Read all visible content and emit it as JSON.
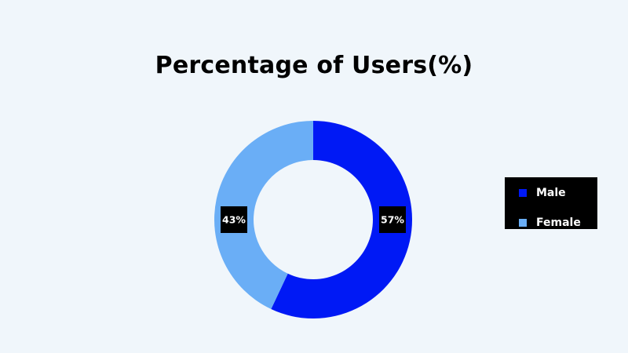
{
  "chart_data": {
    "type": "pie",
    "title": "Percentage of Users(%)",
    "categories": [
      "Male",
      "Female"
    ],
    "values": [
      57,
      43
    ],
    "data_labels": [
      "57%",
      "43%"
    ],
    "colors": [
      "#0019f5",
      "#6aaef6"
    ],
    "donut": true,
    "legend": {
      "placement": "right",
      "background": "#000000",
      "text_color": "#ffffff"
    },
    "label_box_color": "#000000",
    "label_text_color": "#ffffff",
    "background": "#f0f6fb"
  }
}
